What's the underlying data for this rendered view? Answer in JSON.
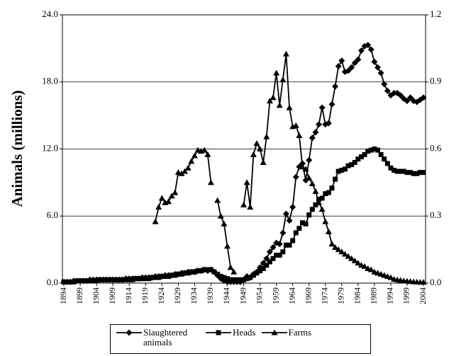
{
  "chart_data": {
    "type": "line",
    "y_label": "Animals (millions)",
    "x": [
      1894,
      1895,
      1896,
      1897,
      1898,
      1899,
      1900,
      1901,
      1902,
      1903,
      1904,
      1905,
      1906,
      1907,
      1908,
      1909,
      1910,
      1911,
      1912,
      1913,
      1914,
      1915,
      1916,
      1917,
      1918,
      1919,
      1920,
      1921,
      1922,
      1923,
      1924,
      1925,
      1926,
      1927,
      1928,
      1929,
      1930,
      1931,
      1932,
      1933,
      1934,
      1935,
      1936,
      1937,
      1938,
      1939,
      1940,
      1941,
      1942,
      1943,
      1944,
      1945,
      1946,
      1947,
      1948,
      1949,
      1950,
      1951,
      1952,
      1953,
      1954,
      1955,
      1956,
      1957,
      1958,
      1959,
      1960,
      1961,
      1962,
      1963,
      1964,
      1965,
      1966,
      1967,
      1968,
      1969,
      1970,
      1971,
      1972,
      1973,
      1974,
      1975,
      1976,
      1977,
      1978,
      1979,
      1980,
      1981,
      1982,
      1983,
      1984,
      1985,
      1986,
      1987,
      1988,
      1989,
      1990,
      1991,
      1992,
      1993,
      1994,
      1995,
      1996,
      1997,
      1998,
      1999,
      2000,
      2001,
      2002,
      2003,
      2004
    ],
    "xlim": [
      1894,
      2004
    ],
    "xticks": [
      1894,
      1899,
      1904,
      1909,
      1914,
      1919,
      1924,
      1929,
      1934,
      1939,
      1944,
      1949,
      1954,
      1959,
      1964,
      1969,
      1974,
      1979,
      1984,
      1989,
      1994,
      1999,
      2004
    ],
    "ylim": [
      0,
      24
    ],
    "yticks": [
      {
        "value": 0,
        "label": "0.0"
      },
      {
        "value": 6,
        "label": "6.0"
      },
      {
        "value": 12,
        "label": "12.0"
      },
      {
        "value": 18,
        "label": "18.0"
      },
      {
        "value": 24,
        "label": "24.0"
      }
    ],
    "y2lim": [
      0,
      1.2
    ],
    "y2ticks": [
      {
        "value": 0,
        "label": "0.0"
      },
      {
        "value": 0.3,
        "label": "0.3"
      },
      {
        "value": 0.6,
        "label": "0.6"
      },
      {
        "value": 0.9,
        "label": "0.9"
      },
      {
        "value": 1.2,
        "label": "1.2"
      }
    ],
    "grid": true,
    "legend": "bottom",
    "series": [
      {
        "name": "Slaughtered animals",
        "color": "#000000",
        "marker": "diamond",
        "values": [
          0.1,
          0.1,
          0.1,
          0.2,
          0.2,
          0.2,
          0.2,
          0.2,
          0.3,
          0.3,
          0.3,
          0.3,
          0.3,
          0.3,
          0.3,
          0.3,
          0.3,
          0.3,
          0.3,
          0.4,
          0.4,
          0.4,
          0.4,
          0.4,
          0.5,
          0.5,
          0.5,
          0.5,
          0.6,
          0.6,
          0.6,
          0.7,
          0.7,
          0.7,
          0.8,
          0.8,
          0.9,
          0.9,
          1.0,
          1.0,
          1.0,
          1.1,
          1.1,
          1.2,
          1.1,
          1.2,
          1.0,
          0.7,
          0.4,
          0.2,
          0.1,
          0.1,
          0.1,
          0.1,
          0.1,
          0.3,
          0.6,
          0.5,
          0.8,
          1.0,
          1.4,
          1.8,
          2.2,
          2.8,
          3.2,
          3.6,
          3.5,
          4.5,
          6.2,
          5.6,
          6.8,
          9.5,
          10.4,
          10.7,
          9.2,
          11.0,
          13.0,
          13.5,
          14.2,
          15.7,
          14.2,
          14.3,
          16.0,
          17.6,
          19.4,
          19.9,
          18.9,
          19.0,
          19.3,
          19.7,
          20.0,
          20.8,
          21.2,
          21.3,
          20.9,
          19.8,
          19.3,
          18.8,
          17.8,
          17.2,
          16.8,
          17.0,
          17.0,
          16.8,
          16.5,
          16.3,
          16.6,
          16.3,
          16.2,
          16.4,
          16.6
        ]
      },
      {
        "name": "Heads",
        "color": "#000000",
        "marker": "square",
        "values": [
          0.1,
          0.1,
          0.1,
          0.1,
          0.2,
          0.2,
          0.2,
          0.2,
          0.2,
          0.2,
          0.2,
          0.3,
          0.3,
          0.3,
          0.3,
          0.3,
          0.3,
          0.3,
          0.3,
          0.3,
          0.3,
          0.3,
          0.4,
          0.4,
          0.4,
          0.4,
          0.4,
          0.5,
          0.5,
          0.5,
          0.6,
          0.6,
          0.6,
          0.7,
          0.7,
          0.8,
          0.8,
          0.9,
          0.9,
          1.0,
          1.0,
          1.1,
          1.1,
          1.2,
          1.2,
          1.2,
          1.0,
          0.8,
          0.6,
          0.5,
          0.4,
          0.3,
          0.3,
          0.3,
          0.3,
          0.3,
          0.4,
          0.5,
          0.7,
          0.9,
          1.1,
          1.3,
          1.6,
          1.9,
          2.2,
          2.5,
          2.5,
          2.8,
          3.4,
          3.4,
          3.8,
          4.5,
          4.9,
          5.4,
          5.3,
          6.1,
          6.6,
          7.0,
          7.5,
          7.6,
          8.0,
          8.1,
          8.5,
          9.3,
          10.0,
          10.1,
          10.2,
          10.5,
          10.6,
          10.8,
          11.1,
          11.3,
          11.5,
          11.8,
          11.9,
          12.0,
          11.9,
          11.5,
          11.1,
          10.7,
          10.3,
          10.1,
          10.0,
          10.0,
          10.0,
          9.9,
          9.9,
          9.8,
          9.8,
          9.9,
          9.9
        ]
      },
      {
        "name": "Farms",
        "color": "#000000",
        "marker": "triangle",
        "axis": "y2",
        "values": [
          null,
          null,
          null,
          null,
          null,
          null,
          null,
          null,
          null,
          null,
          null,
          null,
          null,
          null,
          null,
          null,
          null,
          null,
          null,
          null,
          null,
          null,
          null,
          null,
          null,
          null,
          null,
          null,
          0.275,
          0.34,
          0.38,
          0.36,
          0.365,
          0.39,
          0.405,
          0.495,
          0.49,
          0.5,
          0.515,
          0.545,
          0.57,
          0.595,
          0.59,
          0.595,
          0.575,
          0.45,
          null,
          0.37,
          0.3,
          0.265,
          0.165,
          0.07,
          0.05,
          null,
          null,
          0.35,
          0.45,
          0.34,
          0.575,
          0.625,
          0.6,
          0.54,
          0.655,
          0.815,
          0.83,
          0.94,
          0.795,
          0.91,
          1.025,
          0.785,
          0.7,
          0.705,
          0.66,
          0.52,
          0.51,
          0.47,
          0.445,
          0.41,
          0.36,
          0.33,
          0.275,
          0.23,
          0.175,
          0.16,
          0.15,
          0.14,
          0.13,
          0.12,
          0.11,
          0.1,
          0.09,
          0.08,
          0.075,
          0.065,
          0.06,
          0.05,
          0.045,
          0.04,
          0.035,
          0.03,
          0.025,
          0.0175,
          0.015,
          0.0125,
          0.01,
          0.009,
          0.0075,
          0.006,
          0.005,
          0.004,
          0.004
        ]
      }
    ]
  }
}
